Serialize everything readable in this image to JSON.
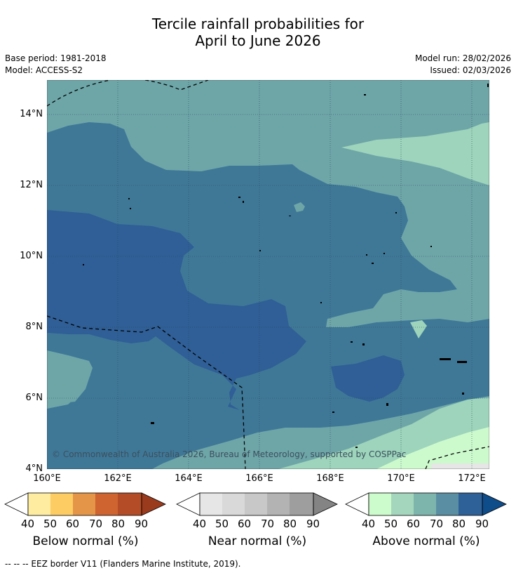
{
  "title_line1": "Tercile rainfall probabilities for",
  "title_line2": "April to June 2026",
  "meta": {
    "base_period": "Base period: 1981-2018",
    "model": "Model: ACCESS-S2",
    "model_run": "Model run: 28/02/2026",
    "issued": "Issued: 02/03/2026"
  },
  "map": {
    "lat_labels": [
      "14°N",
      "12°N",
      "10°N",
      "8°N",
      "6°N",
      "4°N"
    ],
    "lon_labels": [
      "160°E",
      "162°E",
      "164°E",
      "166°E",
      "168°E",
      "170°E",
      "172°E"
    ],
    "copyright": "© Commonwealth of Australia 2026, Bureau of Meteorology, supported by COSPPac",
    "colors": {
      "above_50": "#cdfacd",
      "above_60": "#9dd4bb",
      "above_70": "#6ea6a8",
      "above_80": "#3f7897",
      "above_90": "#2f5f96"
    }
  },
  "colorbars": [
    {
      "title": "Below normal (%)",
      "ticks": [
        "40",
        "50",
        "60",
        "70",
        "80",
        "90"
      ],
      "colors": [
        "#ffffff",
        "#feeda0",
        "#fdcd63",
        "#e59547",
        "#cf6431",
        "#b44c27",
        "#9b3b1e"
      ]
    },
    {
      "title": "Near normal (%)",
      "ticks": [
        "40",
        "50",
        "60",
        "70",
        "80",
        "90"
      ],
      "colors": [
        "#ffffff",
        "#e6e6e6",
        "#d9d9d9",
        "#c8c8c8",
        "#b3b3b3",
        "#9e9e9e",
        "#848484"
      ]
    },
    {
      "title": "Above normal (%)",
      "ticks": [
        "40",
        "50",
        "60",
        "70",
        "80",
        "90"
      ],
      "colors": [
        "#ffffff",
        "#ccfbcc",
        "#a3d6bd",
        "#7db5ad",
        "#5a8fa3",
        "#2f6199",
        "#0f4c8a"
      ]
    }
  ],
  "footer": "-- -- -- EEZ border V11 (Flanders Marine Institute, 2019)."
}
